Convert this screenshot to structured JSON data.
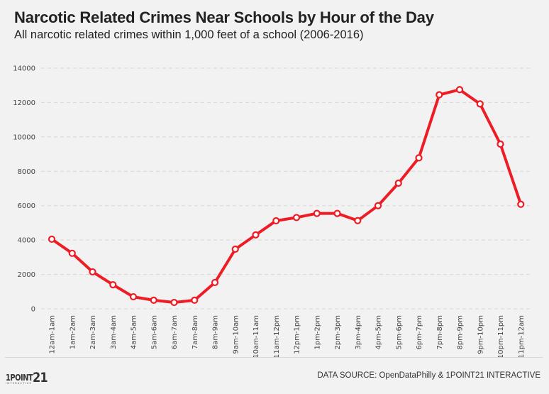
{
  "header": {
    "title": "Narcotic Related Crimes Near Schools by Hour of the Day",
    "subtitle": "All narcotic related crimes within 1,000 feet of a school (2006-2016)"
  },
  "footer": {
    "logo_word": "1POINT",
    "logo_number": "21",
    "logo_tagline": "INTERACTIVE",
    "source": "DATA SOURCE: OpenDataPhilly & 1POINT21 INTERACTIVE"
  },
  "colors": {
    "background": "#f2f2f2",
    "line": "#ee1c25",
    "marker_fill": "#ffffff",
    "grid": "#d6d6d6"
  },
  "chart_data": {
    "type": "line",
    "title": "Narcotic Related Crimes Near Schools by Hour of the Day",
    "subtitle": "All narcotic related crimes within 1,000 feet of a school (2006-2016)",
    "xlabel": "",
    "ylabel": "",
    "ylim": [
      0,
      14000
    ],
    "yticks": [
      0,
      2000,
      4000,
      6000,
      8000,
      10000,
      12000,
      14000
    ],
    "ytick_labels": [
      "0",
      "2000",
      "4000",
      "6000",
      "8000",
      "10000",
      "12000",
      "14000"
    ],
    "grid": true,
    "legend": "none",
    "categories": [
      "12am-1am",
      "1am-2am",
      "2am-3am",
      "3am-4am",
      "4am-5am",
      "5am-6am",
      "6am-7am",
      "7am-8am",
      "8am-9am",
      "9am-10am",
      "10am-11am",
      "11am-12pm",
      "12pm-1pm",
      "1pm-2pm",
      "2pm-3pm",
      "3pm-4pm",
      "4pm-5pm",
      "5pm-6pm",
      "6pm-7pm",
      "7pm-8pm",
      "8pm-9pm",
      "9pm-10pm",
      "10pm-11pm",
      "11pm-12am"
    ],
    "series": [
      {
        "name": "Narcotic related crimes",
        "values": [
          4050,
          3230,
          2150,
          1400,
          700,
          500,
          370,
          500,
          1530,
          3470,
          4300,
          5120,
          5310,
          5550,
          5550,
          5130,
          6000,
          7310,
          8780,
          12450,
          12750,
          11920,
          9580,
          6080
        ]
      }
    ]
  }
}
